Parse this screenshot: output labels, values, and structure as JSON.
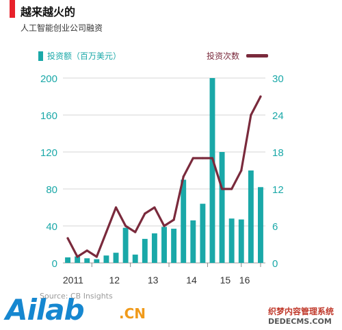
{
  "title": "越来越火的",
  "subtitle": "人工智能创业公司融资",
  "legend": {
    "bars_label": "投资额（百万美元）",
    "line_label": "投资次数"
  },
  "colors": {
    "bar": "#1aa8a8",
    "line": "#7a2a3c",
    "accent": "#e8212a"
  },
  "source": "Source: CB Insights",
  "watermark": {
    "logo_main": "Ailab",
    "logo_suffix": ".CN",
    "site_name": "织梦内容管理系统",
    "site_url": "DEDECMS.COM"
  },
  "chart_data": {
    "type": "bar+line",
    "x_tick_labels": [
      "2011",
      "12",
      "13",
      "14",
      "15",
      "16"
    ],
    "left_axis": {
      "ylim": [
        0,
        200
      ],
      "ticks": [
        0,
        40,
        80,
        120,
        160,
        200
      ]
    },
    "right_axis": {
      "ylim": [
        0,
        30
      ],
      "ticks": [
        0,
        6,
        12,
        18,
        24,
        30
      ]
    },
    "grid": true,
    "series": [
      {
        "name": "投资额（百万美元）",
        "type": "bar",
        "axis": "left",
        "values": [
          6,
          7,
          5,
          4,
          8,
          11,
          38,
          9,
          26,
          32,
          39,
          37,
          90,
          46,
          64,
          200,
          120,
          48,
          47,
          100,
          82
        ]
      },
      {
        "name": "投资次数",
        "type": "line",
        "axis": "right",
        "values": [
          4,
          1,
          2,
          1,
          5,
          9,
          6,
          5,
          8,
          9,
          6,
          7,
          14,
          17,
          17,
          17,
          12,
          12,
          15,
          24,
          27
        ]
      }
    ]
  }
}
